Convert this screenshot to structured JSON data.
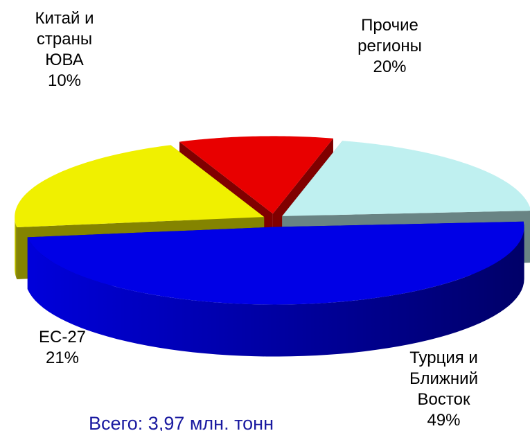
{
  "chart_data": {
    "type": "pie3d",
    "categories": [
      "Китай и страны ЮВА",
      "Прочие регионы",
      "Турция и Ближний Восток",
      "ЕС-27"
    ],
    "values": [
      10,
      20,
      49,
      21
    ],
    "value_labels": [
      "10%",
      "20%",
      "49%",
      "21%"
    ],
    "colors": [
      "#e80000",
      "#bff0f0",
      "#0000e6",
      "#f0f000"
    ],
    "annotation": "Всего: 3,97 млн. тонн"
  }
}
